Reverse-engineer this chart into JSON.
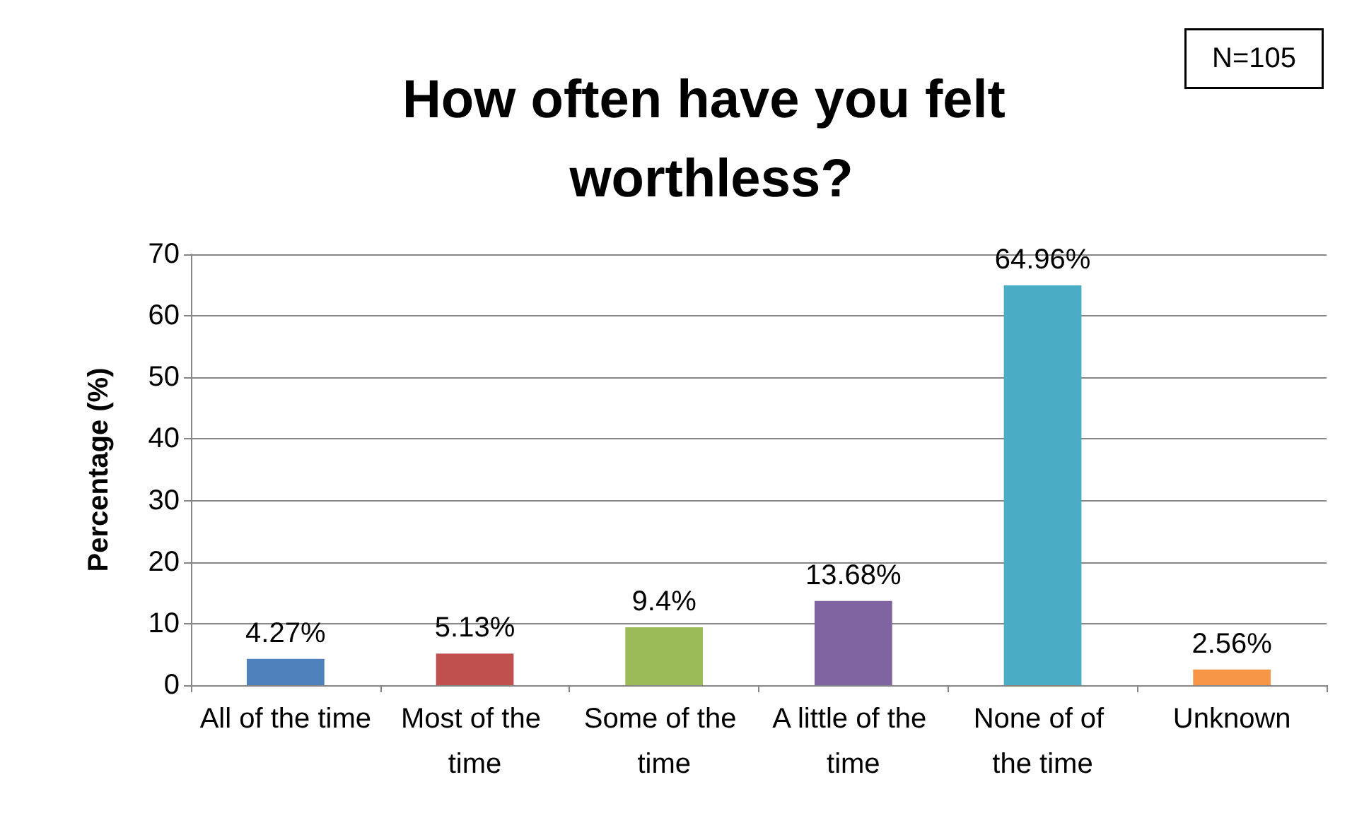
{
  "chart_data": {
    "type": "bar",
    "title": "How often have you felt worthless?",
    "ylabel": "Percentage (%)",
    "annotations": [
      "N=105"
    ],
    "categories": [
      "All of the time",
      "Most of the time",
      "Some of the time",
      "A little of the time",
      "None of of the time",
      "Unknown"
    ],
    "values": [
      4.27,
      5.13,
      9.4,
      13.68,
      64.96,
      2.56
    ],
    "colors": [
      "#4f81bd",
      "#c0504d",
      "#9bbb59",
      "#8064a2",
      "#4bacc6",
      "#f79646"
    ],
    "value_labels": [
      "4.27%",
      "5.13%",
      "9.4%",
      "13.68%",
      "64.96%",
      "2.56%"
    ],
    "ylim": [
      0,
      70
    ],
    "yticks": [
      0,
      10,
      20,
      30,
      40,
      50,
      60,
      70
    ],
    "grid": "y"
  }
}
